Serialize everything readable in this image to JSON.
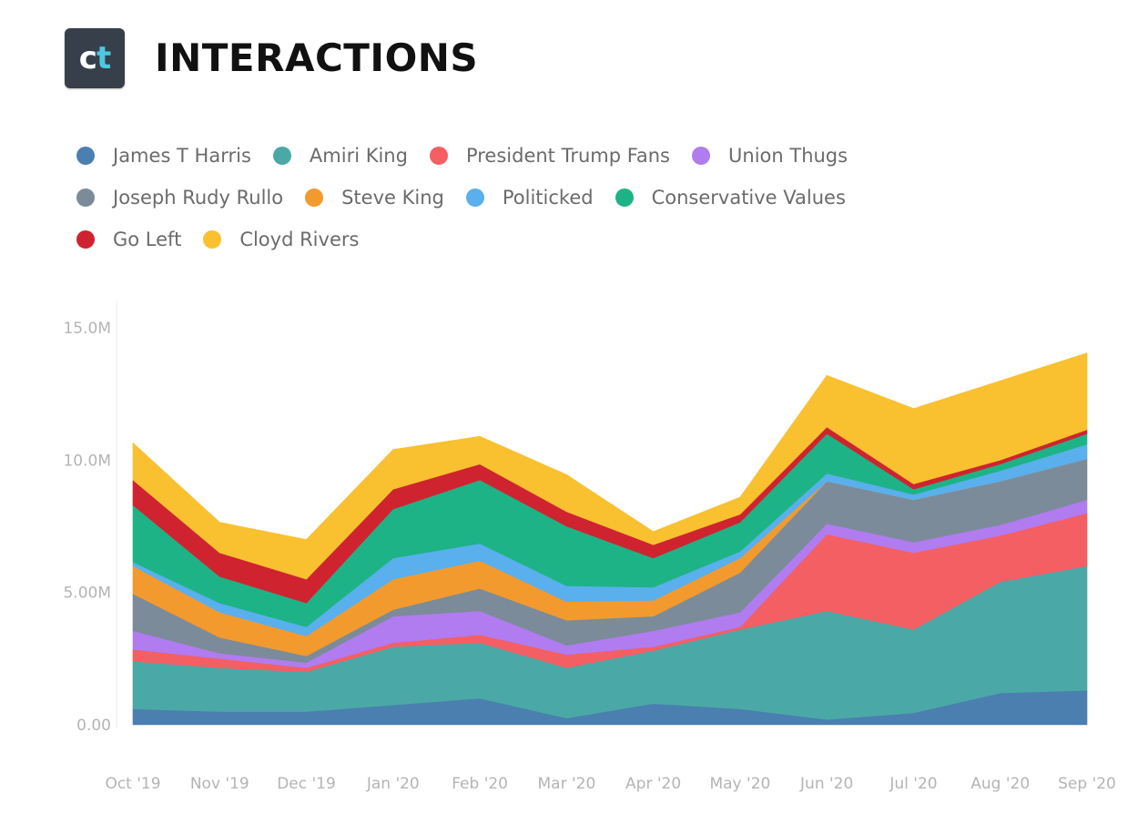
{
  "header": {
    "logo_main": "c",
    "logo_accent": "t",
    "title": "INTERACTIONS"
  },
  "colors": {
    "logo_background": "#37404a",
    "logo_accent": "#4cc9e0"
  },
  "chart_data": {
    "type": "area",
    "stacked": true,
    "title": "INTERACTIONS",
    "xlabel": "",
    "ylabel": "",
    "ylim": [
      0,
      15000000
    ],
    "grid": false,
    "legend_position": "top",
    "categories": [
      "Oct '19",
      "Nov '19",
      "Dec '19",
      "Jan '20",
      "Feb '20",
      "Mar '20",
      "Apr '20",
      "May '20",
      "Jun '20",
      "Jul '20",
      "Aug '20",
      "Sep '20"
    ],
    "y_ticks": [
      {
        "value": 0,
        "label": "0.00"
      },
      {
        "value": 5000000,
        "label": "5.00M"
      },
      {
        "value": 10000000,
        "label": "10.0M"
      },
      {
        "value": 15000000,
        "label": "15.0M"
      }
    ],
    "series": [
      {
        "name": "James T Harris",
        "color": "#4a7fb0",
        "values": [
          600000,
          500000,
          500000,
          750000,
          1000000,
          250000,
          800000,
          600000,
          200000,
          450000,
          1200000,
          1300000
        ]
      },
      {
        "name": "Amiri King",
        "color": "#4aa9a6",
        "values": [
          1800000,
          1650000,
          1500000,
          2200000,
          2100000,
          1900000,
          2000000,
          3000000,
          4100000,
          3150000,
          4200000,
          4700000
        ]
      },
      {
        "name": "President Trump Fans",
        "color": "#f45f63",
        "values": [
          450000,
          350000,
          150000,
          150000,
          300000,
          500000,
          150000,
          100000,
          2900000,
          2900000,
          1750000,
          2000000
        ]
      },
      {
        "name": "Union Thugs",
        "color": "#b07cf0",
        "values": [
          700000,
          200000,
          200000,
          1000000,
          900000,
          350000,
          600000,
          550000,
          400000,
          400000,
          400000,
          500000
        ]
      },
      {
        "name": "Joseph Rudy Rullo",
        "color": "#7c8b99",
        "values": [
          1400000,
          600000,
          250000,
          250000,
          850000,
          950000,
          550000,
          1500000,
          1600000,
          1600000,
          1650000,
          1550000
        ]
      },
      {
        "name": "Steve King",
        "color": "#f39a2e",
        "values": [
          1050000,
          950000,
          750000,
          1150000,
          1050000,
          700000,
          600000,
          550000,
          0,
          0,
          0,
          0
        ]
      },
      {
        "name": "Politicked",
        "color": "#59b0ec",
        "values": [
          150000,
          350000,
          350000,
          800000,
          650000,
          600000,
          500000,
          250000,
          300000,
          200000,
          400000,
          550000
        ]
      },
      {
        "name": "Conservative Values",
        "color": "#1eb386",
        "values": [
          2150000,
          1000000,
          900000,
          1850000,
          2400000,
          2250000,
          1100000,
          1100000,
          1500000,
          200000,
          250000,
          400000
        ]
      },
      {
        "name": "Go Left",
        "color": "#cf2430",
        "values": [
          950000,
          900000,
          900000,
          750000,
          600000,
          550000,
          500000,
          300000,
          250000,
          200000,
          150000,
          150000
        ]
      },
      {
        "name": "Cloyd Rivers",
        "color": "#f9c030",
        "values": [
          1400000,
          1150000,
          1500000,
          1500000,
          1050000,
          1400000,
          500000,
          650000,
          1950000,
          2850000,
          3000000,
          2900000
        ]
      }
    ]
  }
}
